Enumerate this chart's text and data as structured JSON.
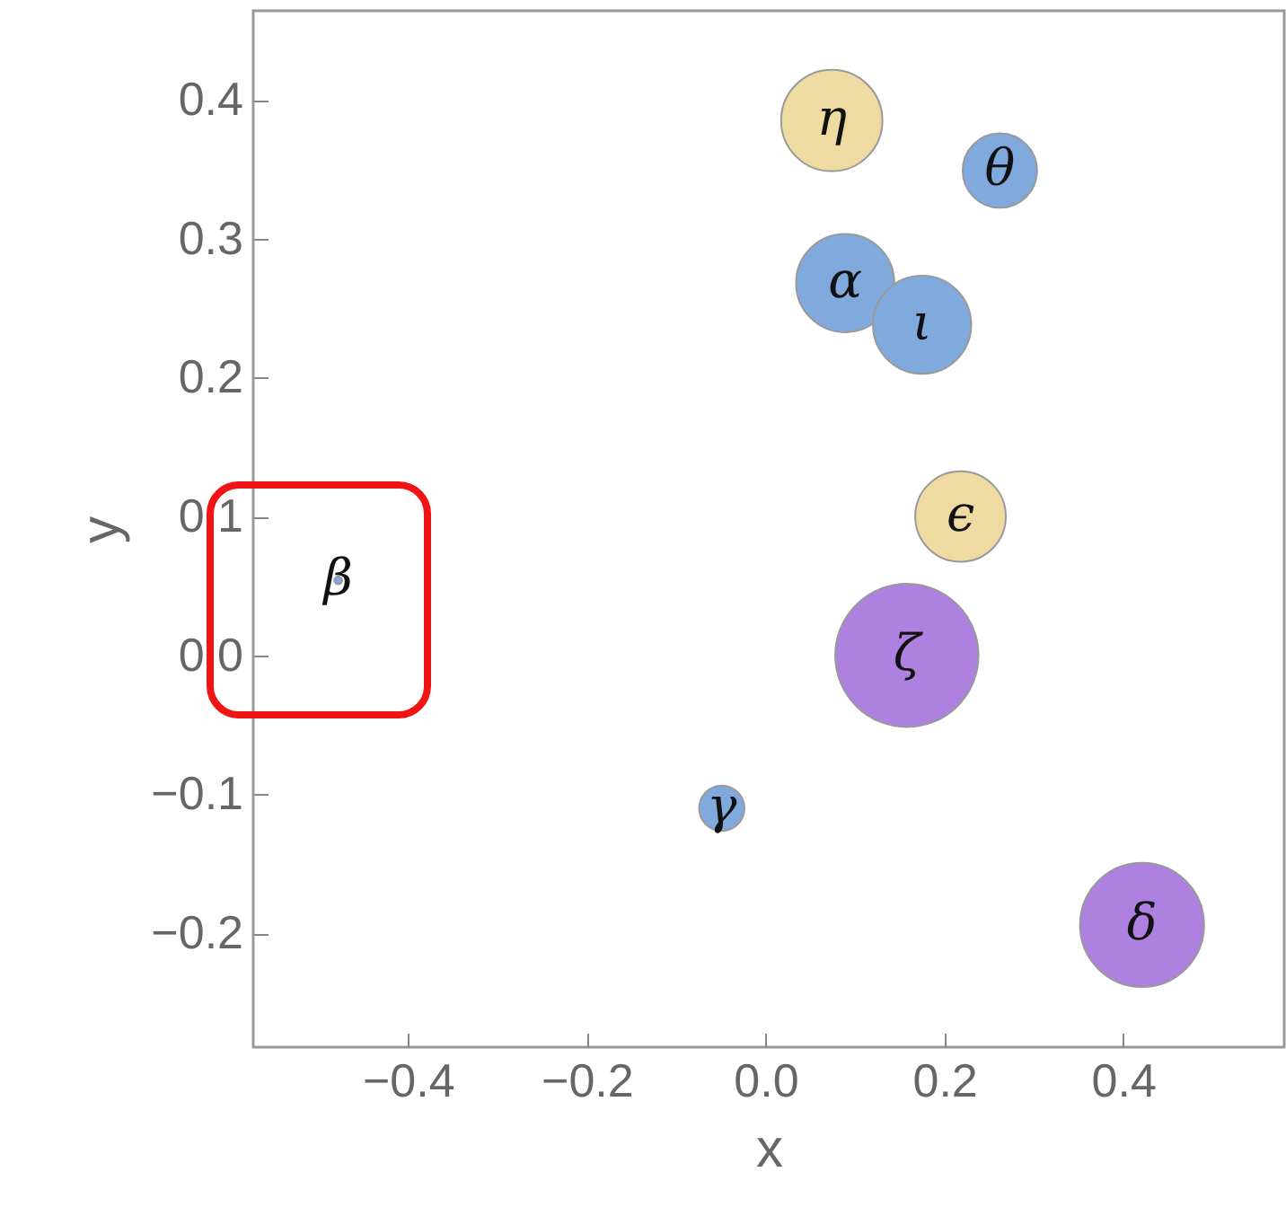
{
  "chart_data": {
    "type": "bubble",
    "xlabel": "x",
    "ylabel": "y",
    "marker": "circle",
    "xlim": [
      -0.573,
      0.58
    ],
    "ylim": [
      -0.282,
      0.464
    ],
    "xticks": [
      {
        "value": -0.4,
        "label": "−0.4"
      },
      {
        "value": -0.2,
        "label": "−0.2"
      },
      {
        "value": 0,
        "label": "0.0"
      },
      0.2,
      0.4
    ],
    "yticks": [
      {
        "value": -0.2,
        "label": "−0.2"
      },
      {
        "value": -0.1,
        "label": "−0.1"
      },
      {
        "value": 0,
        "label": "0.0"
      },
      0.1,
      0.2,
      0.3,
      0.4
    ],
    "series": [
      {
        "color": "#80aadd",
        "x": [
          0.089,
          -0.478,
          -0.049,
          0.262,
          0.175
        ],
        "values": [
          0.268,
          0.054,
          -0.11,
          0.349,
          0.238
        ],
        "sizes": [
          0.47,
          0.003,
          0.1,
          0.27,
          0.47
        ]
      },
      {
        "color": "#efdba2",
        "x": [
          0.218,
          0.074
        ],
        "values": [
          0.1,
          0.385
        ],
        "sizes": [
          0.4,
          0.5
        ]
      },
      {
        "color": "#ae80e0",
        "x": [
          0.421,
          0.158
        ],
        "values": [
          -0.194,
          0.0
        ],
        "sizes": [
          0.75,
          1
        ]
      }
    ],
    "annotations": [
      {
        "text": "α",
        "x": 0.089,
        "y": 0.268
      },
      {
        "text": "β",
        "x": -0.478,
        "y": 0.054
      },
      {
        "text": "γ",
        "x": -0.049,
        "y": -0.11
      },
      {
        "text": "δ",
        "x": 0.421,
        "y": -0.194
      },
      {
        "text": "ϵ",
        "x": 0.218,
        "y": 0.1
      },
      {
        "text": "ζ",
        "x": 0.158,
        "y": 0.0
      },
      {
        "text": "η",
        "x": 0.074,
        "y": 0.385
      },
      {
        "text": "θ",
        "x": 0.262,
        "y": 0.349
      },
      {
        "text": "ι",
        "x": 0.175,
        "y": 0.238
      }
    ]
  }
}
